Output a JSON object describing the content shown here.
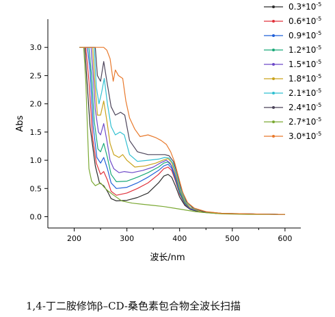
{
  "chart_data": {
    "type": "line",
    "title": "",
    "xlabel": "波长/nm",
    "ylabel": "Abs",
    "xlim": [
      150,
      630
    ],
    "ylim": [
      -0.2,
      3.5
    ],
    "xticks": [
      "200",
      "300",
      "400",
      "500",
      "600"
    ],
    "yticks": [
      "0.0",
      "0.5",
      "1.0",
      "1.5",
      "2.0",
      "2.5",
      "3.0"
    ],
    "grid": false,
    "legend_position": "top-right",
    "series": [
      {
        "name": "0.3*10",
        "exp": "-5",
        "color": "#2b2b2b",
        "points": [
          [
            210,
            3.0
          ],
          [
            220,
            3.0
          ],
          [
            225,
            2.3
          ],
          [
            230,
            1.6
          ],
          [
            240,
            0.9
          ],
          [
            248,
            0.6
          ],
          [
            256,
            0.55
          ],
          [
            263,
            0.45
          ],
          [
            270,
            0.32
          ],
          [
            280,
            0.28
          ],
          [
            300,
            0.29
          ],
          [
            320,
            0.34
          ],
          [
            340,
            0.42
          ],
          [
            360,
            0.6
          ],
          [
            370,
            0.72
          ],
          [
            378,
            0.75
          ],
          [
            385,
            0.7
          ],
          [
            392,
            0.55
          ],
          [
            400,
            0.35
          ],
          [
            410,
            0.2
          ],
          [
            420,
            0.13
          ],
          [
            440,
            0.08
          ],
          [
            470,
            0.06
          ],
          [
            520,
            0.05
          ],
          [
            600,
            0.04
          ]
        ]
      },
      {
        "name": "0.6*10",
        "exp": "-5",
        "color": "#e0303a",
        "points": [
          [
            210,
            3.0
          ],
          [
            222,
            3.0
          ],
          [
            228,
            2.4
          ],
          [
            235,
            1.4
          ],
          [
            242,
            0.95
          ],
          [
            250,
            0.75
          ],
          [
            256,
            0.8
          ],
          [
            263,
            0.65
          ],
          [
            270,
            0.45
          ],
          [
            280,
            0.38
          ],
          [
            300,
            0.42
          ],
          [
            320,
            0.5
          ],
          [
            340,
            0.6
          ],
          [
            360,
            0.75
          ],
          [
            370,
            0.85
          ],
          [
            378,
            0.88
          ],
          [
            385,
            0.82
          ],
          [
            392,
            0.64
          ],
          [
            400,
            0.4
          ],
          [
            410,
            0.22
          ],
          [
            420,
            0.14
          ],
          [
            440,
            0.09
          ],
          [
            470,
            0.06
          ],
          [
            520,
            0.05
          ],
          [
            600,
            0.04
          ]
        ]
      },
      {
        "name": "0.9*10",
        "exp": "-5",
        "color": "#1f5fd8",
        "points": [
          [
            210,
            3.0
          ],
          [
            225,
            3.0
          ],
          [
            230,
            2.6
          ],
          [
            236,
            1.6
          ],
          [
            243,
            1.05
          ],
          [
            250,
            0.95
          ],
          [
            256,
            1.05
          ],
          [
            263,
            0.85
          ],
          [
            270,
            0.6
          ],
          [
            280,
            0.5
          ],
          [
            300,
            0.52
          ],
          [
            320,
            0.6
          ],
          [
            340,
            0.7
          ],
          [
            360,
            0.82
          ],
          [
            370,
            0.9
          ],
          [
            378,
            0.93
          ],
          [
            385,
            0.86
          ],
          [
            392,
            0.67
          ],
          [
            400,
            0.42
          ],
          [
            410,
            0.23
          ],
          [
            420,
            0.14
          ],
          [
            440,
            0.09
          ],
          [
            470,
            0.06
          ],
          [
            520,
            0.05
          ],
          [
            600,
            0.04
          ]
        ]
      },
      {
        "name": "1.2*10",
        "exp": "-5",
        "color": "#18a878",
        "points": [
          [
            210,
            3.0
          ],
          [
            228,
            3.0
          ],
          [
            233,
            2.5
          ],
          [
            238,
            1.7
          ],
          [
            245,
            1.2
          ],
          [
            250,
            1.15
          ],
          [
            256,
            1.3
          ],
          [
            263,
            1.05
          ],
          [
            270,
            0.75
          ],
          [
            280,
            0.62
          ],
          [
            300,
            0.63
          ],
          [
            320,
            0.7
          ],
          [
            340,
            0.78
          ],
          [
            360,
            0.88
          ],
          [
            370,
            0.95
          ],
          [
            378,
            0.97
          ],
          [
            385,
            0.9
          ],
          [
            392,
            0.7
          ],
          [
            400,
            0.44
          ],
          [
            410,
            0.24
          ],
          [
            420,
            0.15
          ],
          [
            440,
            0.09
          ],
          [
            470,
            0.06
          ],
          [
            520,
            0.05
          ],
          [
            600,
            0.04
          ]
        ]
      },
      {
        "name": "1.5*10",
        "exp": "-5",
        "color": "#6c48c8",
        "points": [
          [
            210,
            3.0
          ],
          [
            232,
            3.0
          ],
          [
            236,
            2.5
          ],
          [
            240,
            1.9
          ],
          [
            246,
            1.5
          ],
          [
            250,
            1.45
          ],
          [
            256,
            1.65
          ],
          [
            262,
            1.35
          ],
          [
            268,
            1.0
          ],
          [
            275,
            0.85
          ],
          [
            285,
            0.78
          ],
          [
            295,
            0.8
          ],
          [
            310,
            0.78
          ],
          [
            330,
            0.82
          ],
          [
            350,
            0.88
          ],
          [
            365,
            0.96
          ],
          [
            375,
            1.0
          ],
          [
            382,
            0.95
          ],
          [
            390,
            0.78
          ],
          [
            400,
            0.48
          ],
          [
            410,
            0.26
          ],
          [
            420,
            0.15
          ],
          [
            440,
            0.09
          ],
          [
            470,
            0.06
          ],
          [
            520,
            0.05
          ],
          [
            600,
            0.04
          ]
        ]
      },
      {
        "name": "1.8*10",
        "exp": "-5",
        "color": "#c9a21a",
        "points": [
          [
            210,
            3.0
          ],
          [
            235,
            3.0
          ],
          [
            239,
            2.4
          ],
          [
            244,
            1.8
          ],
          [
            250,
            1.8
          ],
          [
            256,
            2.05
          ],
          [
            262,
            1.7
          ],
          [
            268,
            1.3
          ],
          [
            275,
            1.1
          ],
          [
            285,
            1.05
          ],
          [
            292,
            1.1
          ],
          [
            300,
            1.0
          ],
          [
            315,
            0.88
          ],
          [
            335,
            0.9
          ],
          [
            355,
            0.95
          ],
          [
            368,
            1.0
          ],
          [
            378,
            1.03
          ],
          [
            385,
            0.96
          ],
          [
            392,
            0.78
          ],
          [
            400,
            0.5
          ],
          [
            410,
            0.27
          ],
          [
            420,
            0.16
          ],
          [
            440,
            0.09
          ],
          [
            470,
            0.06
          ],
          [
            520,
            0.05
          ],
          [
            600,
            0.04
          ]
        ]
      },
      {
        "name": "2.1*10",
        "exp": "-5",
        "color": "#2fbfd1",
        "points": [
          [
            210,
            3.0
          ],
          [
            238,
            3.0
          ],
          [
            242,
            2.3
          ],
          [
            247,
            2.0
          ],
          [
            252,
            2.2
          ],
          [
            257,
            2.45
          ],
          [
            263,
            2.0
          ],
          [
            270,
            1.6
          ],
          [
            278,
            1.45
          ],
          [
            287,
            1.5
          ],
          [
            295,
            1.45
          ],
          [
            305,
            1.1
          ],
          [
            320,
            0.98
          ],
          [
            340,
            1.0
          ],
          [
            360,
            1.02
          ],
          [
            372,
            1.05
          ],
          [
            380,
            1.04
          ],
          [
            387,
            0.95
          ],
          [
            394,
            0.76
          ],
          [
            402,
            0.48
          ],
          [
            412,
            0.26
          ],
          [
            425,
            0.15
          ],
          [
            445,
            0.09
          ],
          [
            480,
            0.06
          ],
          [
            530,
            0.05
          ],
          [
            600,
            0.04
          ]
        ]
      },
      {
        "name": "2.4*10",
        "exp": "-5",
        "color": "#4a4258",
        "points": [
          [
            210,
            3.0
          ],
          [
            240,
            3.0
          ],
          [
            244,
            2.5
          ],
          [
            250,
            2.4
          ],
          [
            256,
            2.75
          ],
          [
            262,
            2.4
          ],
          [
            270,
            1.95
          ],
          [
            278,
            1.8
          ],
          [
            288,
            1.85
          ],
          [
            296,
            1.8
          ],
          [
            305,
            1.35
          ],
          [
            320,
            1.15
          ],
          [
            340,
            1.1
          ],
          [
            360,
            1.1
          ],
          [
            372,
            1.1
          ],
          [
            380,
            1.08
          ],
          [
            388,
            0.98
          ],
          [
            395,
            0.78
          ],
          [
            403,
            0.5
          ],
          [
            413,
            0.27
          ],
          [
            425,
            0.16
          ],
          [
            445,
            0.09
          ],
          [
            480,
            0.06
          ],
          [
            530,
            0.05
          ],
          [
            600,
            0.04
          ]
        ]
      },
      {
        "name": "2.7*10",
        "exp": "-5",
        "color": "#7aa832",
        "points": [
          [
            210,
            3.0
          ],
          [
            218,
            3.0
          ],
          [
            222,
            2.4
          ],
          [
            225,
            1.6
          ],
          [
            228,
            0.85
          ],
          [
            233,
            0.63
          ],
          [
            240,
            0.55
          ],
          [
            250,
            0.6
          ],
          [
            257,
            0.52
          ],
          [
            265,
            0.45
          ],
          [
            275,
            0.38
          ],
          [
            290,
            0.28
          ],
          [
            310,
            0.24
          ],
          [
            330,
            0.22
          ],
          [
            350,
            0.2
          ],
          [
            370,
            0.18
          ],
          [
            390,
            0.15
          ],
          [
            410,
            0.12
          ],
          [
            430,
            0.09
          ],
          [
            450,
            0.07
          ],
          [
            480,
            0.05
          ],
          [
            530,
            0.04
          ],
          [
            600,
            0.04
          ]
        ]
      },
      {
        "name": "3.0*10",
        "exp": "-5",
        "color": "#e8782a",
        "points": [
          [
            210,
            3.0
          ],
          [
            248,
            3.0
          ],
          [
            252,
            3.0
          ],
          [
            256,
            3.0
          ],
          [
            262,
            2.95
          ],
          [
            268,
            2.8
          ],
          [
            274,
            2.4
          ],
          [
            278,
            2.6
          ],
          [
            284,
            2.5
          ],
          [
            292,
            2.45
          ],
          [
            298,
            2.05
          ],
          [
            305,
            1.75
          ],
          [
            315,
            1.55
          ],
          [
            325,
            1.42
          ],
          [
            340,
            1.45
          ],
          [
            355,
            1.4
          ],
          [
            365,
            1.35
          ],
          [
            375,
            1.28
          ],
          [
            383,
            1.15
          ],
          [
            390,
            0.98
          ],
          [
            398,
            0.7
          ],
          [
            406,
            0.43
          ],
          [
            415,
            0.25
          ],
          [
            428,
            0.15
          ],
          [
            450,
            0.09
          ],
          [
            480,
            0.06
          ],
          [
            530,
            0.05
          ],
          [
            600,
            0.04
          ]
        ]
      }
    ]
  },
  "caption": "1,4-丁二胺修饰β–CD-桑色素包合物全波长扫描"
}
